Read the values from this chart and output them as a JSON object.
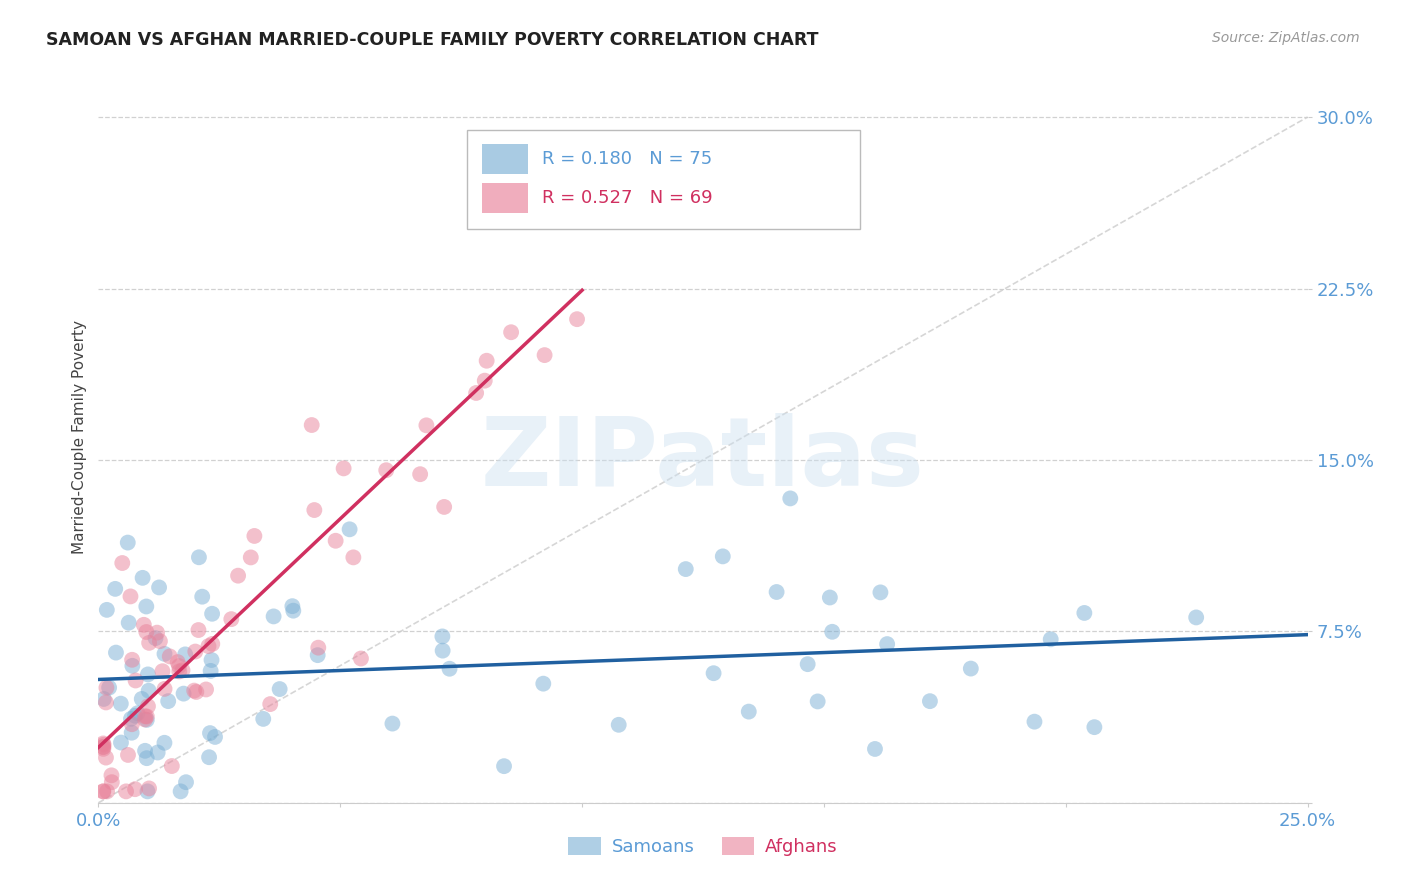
{
  "title": "SAMOAN VS AFGHAN MARRIED-COUPLE FAMILY POVERTY CORRELATION CHART",
  "source": "Source: ZipAtlas.com",
  "ylabel": "Married-Couple Family Poverty",
  "xlim": [
    0.0,
    0.25
  ],
  "ylim": [
    0.0,
    0.32
  ],
  "grid_color": "#cccccc",
  "background_color": "#ffffff",
  "diagonal_line_color": "#cccccc",
  "samoan_color": "#7bafd4",
  "afghan_color": "#e8829a",
  "samoan_line_color": "#2060a0",
  "afghan_line_color": "#d03060",
  "samoan_R": 0.18,
  "samoan_N": 75,
  "afghan_R": 0.527,
  "afghan_N": 69,
  "watermark_text": "ZIPatlas",
  "tick_color": "#5b9bd5"
}
